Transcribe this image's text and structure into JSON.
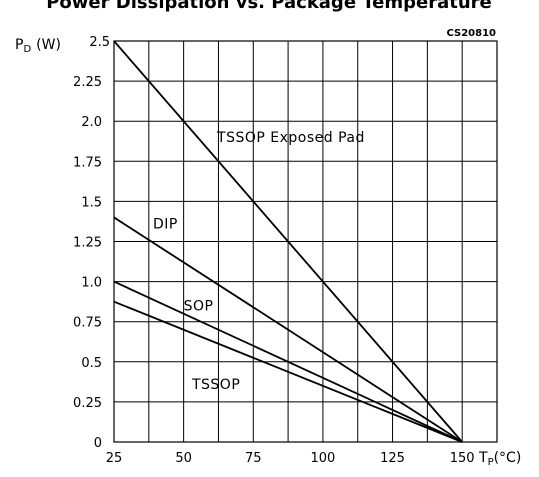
{
  "chart_data": {
    "type": "line",
    "title": "Power Dissipation vs. Package Temperature",
    "code": "CS20810",
    "ylabel_main": "P",
    "ylabel_sub": "D",
    "ylabel_unit": "(W)",
    "xlabel_main": "T",
    "xlabel_sub": "P",
    "xlabel_unit": "(°C)",
    "xlim": [
      25,
      162.5
    ],
    "ylim": [
      0,
      2.5
    ],
    "x_ticks": [
      25,
      50,
      75,
      100,
      125,
      150
    ],
    "x_tick_labels": [
      "25",
      "50",
      "75",
      "100",
      "125",
      "150"
    ],
    "y_ticks": [
      0,
      0.25,
      0.5,
      0.75,
      1.0,
      1.25,
      1.5,
      1.75,
      2.0,
      2.25,
      2.5
    ],
    "y_tick_labels": [
      "0",
      "0.25",
      "0.5",
      "0.75",
      "1.0",
      "1.25",
      "1.5",
      "1.75",
      "2.0",
      "2.25",
      "2.5"
    ],
    "grid": true,
    "series": [
      {
        "name": "TSSOP Exposed Pad",
        "x": [
          25,
          150
        ],
        "y": [
          2.5,
          0
        ],
        "label_at": [
          62,
          1.87
        ]
      },
      {
        "name": "DIP",
        "x": [
          25,
          150
        ],
        "y": [
          1.4,
          0
        ],
        "label_at": [
          39,
          1.33
        ]
      },
      {
        "name": "SOP",
        "x": [
          25,
          150
        ],
        "y": [
          1.0,
          0
        ],
        "label_at": [
          50,
          0.82
        ]
      },
      {
        "name": "TSSOP",
        "x": [
          25,
          150
        ],
        "y": [
          0.875,
          0
        ],
        "label_at": [
          53,
          0.33
        ]
      }
    ]
  }
}
